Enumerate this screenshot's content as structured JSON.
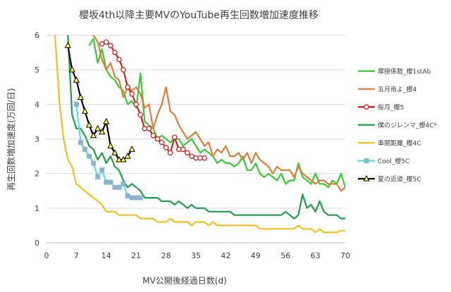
{
  "chart_data": {
    "type": "line",
    "title": "櫻坂4th以降主要MVのYouTube再生回数増加速度推移",
    "xlabel": "MV公開後経過日数(d)",
    "ylabel": "再生回数増加速度(万回/日)",
    "xlim": [
      0,
      70
    ],
    "ylim": [
      0,
      6
    ],
    "xticks": [
      0,
      7,
      14,
      21,
      28,
      35,
      42,
      49,
      56,
      63,
      70
    ],
    "yticks": [
      0,
      1,
      2,
      3,
      4,
      5,
      6
    ],
    "grid": "horizontal",
    "legend_position": "right",
    "series": [
      {
        "name": "摩擦係数_櫻1stAb",
        "color": "#33cc33",
        "marker": "none",
        "x": [
          10,
          11,
          12,
          13,
          14,
          15,
          16,
          17,
          18,
          19,
          20,
          21,
          22,
          23,
          24,
          25,
          26,
          27,
          28,
          29,
          30,
          31,
          32,
          33,
          34,
          35,
          36,
          37,
          38,
          39,
          40,
          41,
          42,
          43,
          44,
          45,
          46,
          47,
          48,
          49,
          50,
          51,
          52,
          53,
          54,
          55,
          56,
          57,
          58,
          59,
          60,
          61,
          62,
          63,
          64,
          65,
          66,
          67,
          68,
          69,
          70
        ],
        "y": [
          5.7,
          5.9,
          5.2,
          5.6,
          5.0,
          4.8,
          4.7,
          4.5,
          4.4,
          4.0,
          4.1,
          3.9,
          4.9,
          3.5,
          3.4,
          3.3,
          3.0,
          3.1,
          3.0,
          2.9,
          3.0,
          3.0,
          2.8,
          2.9,
          3.0,
          2.8,
          2.6,
          2.7,
          2.6,
          2.5,
          2.3,
          2.4,
          2.3,
          2.3,
          2.2,
          2.3,
          2.5,
          2.1,
          2.1,
          2.3,
          2.0,
          1.9,
          2.0,
          1.9,
          1.8,
          2.0,
          1.7,
          1.8,
          1.8,
          2.3,
          1.9,
          1.8,
          1.7,
          2.0,
          1.7,
          1.7,
          1.6,
          1.8,
          1.7,
          2.0,
          1.6
        ]
      },
      {
        "name": "五月雨よ_櫻4",
        "color": "#e07b39",
        "marker": "none",
        "x": [
          11,
          12,
          13,
          14,
          15,
          16,
          17,
          18,
          19,
          20,
          21,
          22,
          23,
          24,
          25,
          26,
          27,
          28,
          29,
          30,
          31,
          32,
          33,
          34,
          35,
          36,
          37,
          38,
          39,
          40,
          41,
          42,
          43,
          44,
          45,
          46,
          47,
          48,
          49,
          50,
          51,
          52,
          53,
          54,
          55,
          56,
          57,
          58,
          59,
          60,
          61,
          62,
          63,
          64,
          65,
          66,
          67,
          68,
          69,
          70
        ],
        "y": [
          6.0,
          5.8,
          5.3,
          5.0,
          5.2,
          4.8,
          4.7,
          4.2,
          4.5,
          4.4,
          4.5,
          4.3,
          3.9,
          4.0,
          3.3,
          3.7,
          4.0,
          4.5,
          3.8,
          3.7,
          3.4,
          3.2,
          3.0,
          3.1,
          3.2,
          3.0,
          2.8,
          2.9,
          2.5,
          2.7,
          2.6,
          2.8,
          2.5,
          2.5,
          2.6,
          2.4,
          2.6,
          2.3,
          2.6,
          2.4,
          2.3,
          2.2,
          2.0,
          2.2,
          2.1,
          2.1,
          2.1,
          1.9,
          2.2,
          2.0,
          1.9,
          1.8,
          1.7,
          1.8,
          1.8,
          1.7,
          1.7,
          1.7,
          1.5,
          1.6
        ]
      },
      {
        "name": "桜月_櫻5",
        "color": "#d42020",
        "marker": "circle",
        "x": [
          13,
          14,
          15,
          16,
          17,
          18,
          19,
          20,
          21,
          22,
          23,
          24,
          25,
          26,
          27,
          28,
          29,
          30,
          31,
          32,
          33,
          34,
          35,
          36,
          37
        ],
        "y": [
          5.75,
          5.8,
          5.7,
          5.5,
          5.3,
          5.0,
          4.5,
          4.3,
          4.0,
          3.7,
          3.3,
          3.3,
          3.1,
          3.0,
          2.9,
          2.75,
          2.6,
          3.05,
          2.7,
          2.7,
          2.6,
          2.5,
          2.45,
          2.45,
          2.45
        ]
      },
      {
        "name": "僕のジレンマ_櫻4C*",
        "color": "#1e9e4a",
        "marker": "none",
        "x": [
          5,
          6,
          7,
          8,
          9,
          10,
          11,
          12,
          13,
          14,
          15,
          16,
          17,
          18,
          19,
          20,
          21,
          22,
          23,
          24,
          25,
          26,
          27,
          28,
          29,
          30,
          31,
          32,
          33,
          34,
          35,
          36,
          37,
          38,
          39,
          40,
          41,
          42,
          43,
          44,
          45,
          46,
          47,
          48,
          49,
          50,
          51,
          52,
          53,
          54,
          55,
          56,
          57,
          58,
          59,
          60,
          61,
          62,
          63,
          64,
          65,
          66,
          67,
          68,
          69,
          70
        ],
        "y": [
          6.0,
          3.7,
          3.3,
          3.3,
          3.1,
          2.8,
          2.7,
          2.4,
          2.6,
          2.3,
          2.5,
          2.2,
          2.1,
          1.8,
          1.6,
          1.7,
          1.6,
          1.5,
          1.3,
          1.3,
          1.3,
          1.3,
          1.2,
          1.2,
          1.2,
          1.1,
          1.2,
          1.1,
          1.0,
          1.1,
          1.0,
          1.0,
          1.0,
          0.9,
          0.9,
          0.9,
          0.9,
          0.9,
          0.9,
          0.8,
          0.8,
          0.8,
          0.8,
          0.8,
          0.8,
          0.8,
          0.8,
          0.8,
          0.8,
          0.8,
          0.8,
          0.9,
          0.8,
          0.7,
          0.8,
          1.4,
          1.0,
          1.1,
          0.9,
          1.2,
          0.9,
          0.8,
          0.8,
          0.8,
          0.7,
          0.7
        ]
      },
      {
        "name": "車間距離_櫻4C",
        "color": "#f0c020",
        "marker": "none",
        "x": [
          2,
          3,
          4,
          5,
          6,
          7,
          8,
          9,
          10,
          11,
          12,
          13,
          14,
          15,
          16,
          17,
          18,
          19,
          20,
          21,
          22,
          23,
          24,
          25,
          26,
          27,
          28,
          29,
          30,
          31,
          32,
          33,
          34,
          35,
          36,
          37,
          38,
          39,
          40,
          41,
          42,
          43,
          44,
          45,
          46,
          47,
          48,
          49,
          50,
          51,
          52,
          53,
          54,
          55,
          56,
          57,
          58,
          59,
          60,
          61,
          62,
          63,
          64,
          65,
          66,
          67,
          68,
          69,
          70
        ],
        "y": [
          6.0,
          4.1,
          3.0,
          2.4,
          2.2,
          1.7,
          1.6,
          1.5,
          1.4,
          1.3,
          1.2,
          1.1,
          0.9,
          0.9,
          0.9,
          0.8,
          0.8,
          0.8,
          0.8,
          0.8,
          0.7,
          0.7,
          0.7,
          0.7,
          0.6,
          0.6,
          0.6,
          0.7,
          0.6,
          0.6,
          0.6,
          0.6,
          0.5,
          0.6,
          0.6,
          0.6,
          0.5,
          0.6,
          0.5,
          0.5,
          0.5,
          0.5,
          0.5,
          0.5,
          0.5,
          0.5,
          0.5,
          0.5,
          0.4,
          0.4,
          0.4,
          0.4,
          0.4,
          0.4,
          0.4,
          0.4,
          0.4,
          0.5,
          0.4,
          0.4,
          0.4,
          0.3,
          0.4,
          0.3,
          0.3,
          0.3,
          0.3,
          0.35,
          0.35
        ]
      },
      {
        "name": "Cool_櫻5C",
        "color": "#55e0e8",
        "marker": "square",
        "x": [
          7,
          8,
          9,
          10,
          11,
          12,
          13,
          14,
          15,
          16,
          17,
          18,
          19,
          20,
          21,
          22
        ],
        "y": [
          4.0,
          2.9,
          2.7,
          2.5,
          2.3,
          1.9,
          2.1,
          1.75,
          1.75,
          1.6,
          1.6,
          1.7,
          1.35,
          1.3,
          1.3,
          1.3
        ]
      },
      {
        "name": "夏の近道_櫻5C",
        "color": "#000000",
        "marker": "triangle",
        "x": [
          5,
          6,
          7,
          8,
          9,
          10,
          11,
          12,
          13,
          14,
          15,
          16,
          17,
          18,
          19,
          20
        ],
        "y": [
          5.7,
          5.0,
          4.7,
          4.2,
          3.8,
          3.4,
          3.1,
          3.3,
          3.2,
          3.5,
          2.8,
          2.6,
          2.4,
          2.4,
          2.5,
          2.7
        ]
      }
    ]
  }
}
